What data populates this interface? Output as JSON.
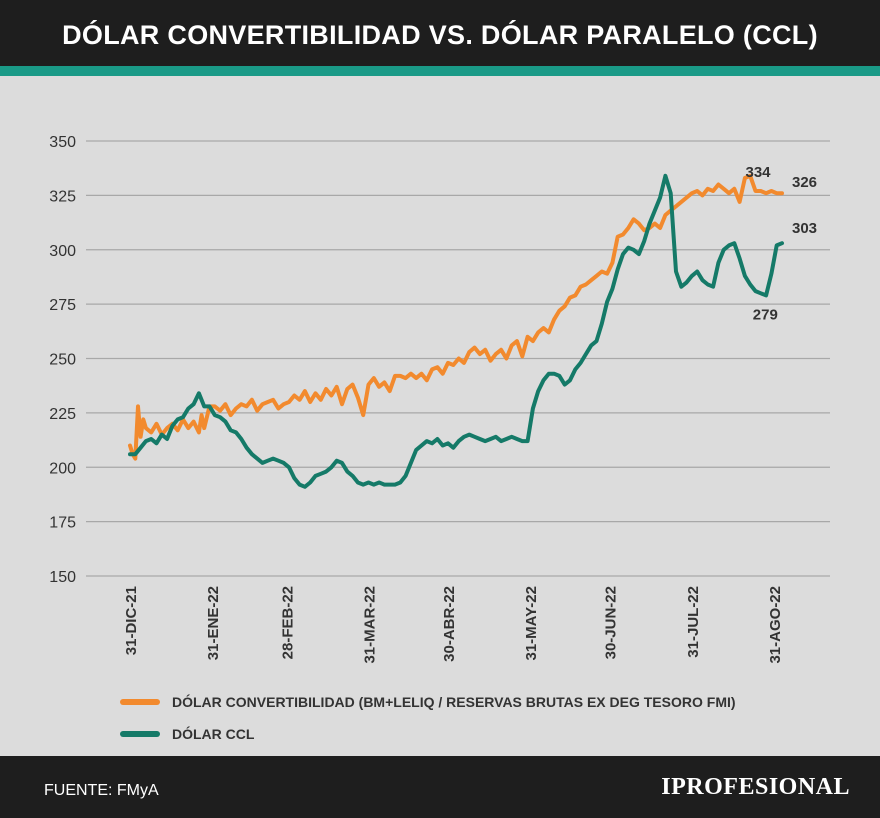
{
  "header": {
    "title": "DÓLAR CONVERTIBILIDAD VS. DÓLAR PARALELO (CCL)"
  },
  "colors": {
    "convertibilidad": "#f28a2e",
    "ccl": "#157a68",
    "accent": "#1a9a87",
    "header_bg": "#1e1e1e"
  },
  "chart_data": {
    "type": "line",
    "title": "DÓLAR CONVERTIBILIDAD VS. DÓLAR PARALELO (CCL)",
    "xlabel": "",
    "ylabel": "",
    "ylim": [
      150,
      350
    ],
    "y_ticks": [
      150,
      175,
      200,
      225,
      250,
      275,
      300,
      325,
      350
    ],
    "grid": true,
    "x_ticks": [
      {
        "label": "31-DIC-21",
        "day": 0
      },
      {
        "label": "31-ENE-22",
        "day": 31
      },
      {
        "label": "28-FEB-22",
        "day": 59
      },
      {
        "label": "31-MAR-22",
        "day": 90
      },
      {
        "label": "30-ABR-22",
        "day": 120
      },
      {
        "label": "31-MAY-22",
        "day": 151
      },
      {
        "label": "30-JUN-22",
        "day": 181
      },
      {
        "label": "31-JUL-22",
        "day": 212
      },
      {
        "label": "31-AGO-22",
        "day": 243
      }
    ],
    "series": [
      {
        "name": "DÓLAR CONVERTIBILIDAD (BM+LELIQ / RESERVAS BRUTAS EX DEG TESORO FMI)",
        "color": "#f28a2e",
        "x": [
          0,
          1,
          2,
          3,
          4,
          5,
          6,
          8,
          10,
          12,
          14,
          16,
          18,
          20,
          22,
          24,
          26,
          27,
          28,
          30,
          32,
          34,
          36,
          38,
          40,
          42,
          44,
          46,
          48,
          50,
          52,
          54,
          56,
          58,
          60,
          62,
          64,
          66,
          68,
          70,
          72,
          74,
          76,
          78,
          80,
          82,
          84,
          86,
          88,
          90,
          92,
          94,
          96,
          98,
          100,
          102,
          104,
          106,
          108,
          110,
          112,
          114,
          116,
          118,
          120,
          122,
          124,
          126,
          128,
          130,
          132,
          134,
          136,
          138,
          140,
          142,
          144,
          146,
          148,
          150,
          152,
          154,
          156,
          158,
          160,
          162,
          164,
          166,
          168,
          170,
          172,
          174,
          176,
          178,
          180,
          182,
          184,
          186,
          188,
          190,
          192,
          194,
          196,
          198,
          200,
          202,
          204,
          206,
          208,
          210,
          212,
          214,
          216,
          218,
          220,
          222,
          224,
          226,
          228,
          230,
          232,
          234,
          236,
          238,
          240,
          242,
          244,
          246
        ],
        "values": [
          210,
          206,
          204,
          228,
          214,
          222,
          218,
          216,
          220,
          215,
          218,
          220,
          217,
          222,
          218,
          221,
          216,
          224,
          218,
          228,
          228,
          226,
          229,
          224,
          227,
          229,
          228,
          231,
          226,
          229,
          230,
          231,
          227,
          229,
          230,
          233,
          231,
          235,
          230,
          234,
          231,
          236,
          233,
          237,
          229,
          236,
          238,
          232,
          224,
          238,
          241,
          237,
          239,
          235,
          242,
          242,
          241,
          243,
          241,
          243,
          240,
          245,
          246,
          243,
          248,
          247,
          250,
          248,
          253,
          255,
          252,
          254,
          249,
          252,
          254,
          250,
          256,
          258,
          251,
          260,
          258,
          262,
          264,
          262,
          268,
          272,
          274,
          278,
          279,
          283,
          284,
          286,
          288,
          290,
          289,
          294,
          306,
          307,
          310,
          314,
          312,
          309,
          310,
          312,
          310,
          316,
          318,
          320,
          322,
          324,
          326,
          327,
          325,
          328,
          327,
          330,
          328,
          326,
          328,
          322,
          333,
          334,
          327,
          327,
          326,
          327,
          326,
          326
        ]
      },
      {
        "name": "DÓLAR CCL",
        "color": "#157a68",
        "x": [
          0,
          2,
          4,
          6,
          8,
          10,
          12,
          14,
          16,
          18,
          20,
          22,
          24,
          26,
          28,
          30,
          32,
          34,
          36,
          38,
          40,
          42,
          44,
          46,
          48,
          50,
          52,
          54,
          56,
          58,
          60,
          62,
          64,
          66,
          68,
          70,
          72,
          74,
          76,
          78,
          80,
          82,
          84,
          86,
          88,
          90,
          92,
          94,
          96,
          98,
          100,
          102,
          104,
          106,
          108,
          110,
          112,
          114,
          116,
          118,
          120,
          122,
          124,
          126,
          128,
          130,
          132,
          134,
          136,
          138,
          140,
          142,
          144,
          146,
          148,
          150,
          152,
          154,
          156,
          158,
          160,
          162,
          164,
          166,
          168,
          170,
          172,
          174,
          176,
          178,
          180,
          182,
          184,
          186,
          188,
          190,
          192,
          194,
          196,
          198,
          200,
          202,
          204,
          206,
          208,
          210,
          212,
          214,
          216,
          218,
          220,
          222,
          224,
          226,
          228,
          230,
          232,
          234,
          236,
          238,
          240,
          242,
          244,
          246
        ],
        "values": [
          206,
          206,
          209,
          212,
          213,
          211,
          215,
          213,
          219,
          222,
          223,
          227,
          229,
          234,
          228,
          228,
          224,
          223,
          221,
          217,
          216,
          213,
          209,
          206,
          204,
          202,
          203,
          204,
          203,
          202,
          200,
          195,
          192,
          191,
          193,
          196,
          197,
          198,
          200,
          203,
          202,
          198,
          196,
          193,
          192,
          193,
          192,
          193,
          192,
          192,
          192,
          193,
          196,
          202,
          208,
          210,
          212,
          211,
          213,
          210,
          211,
          209,
          212,
          214,
          215,
          214,
          213,
          212,
          213,
          214,
          212,
          213,
          214,
          213,
          212,
          212,
          227,
          235,
          240,
          243,
          243,
          242,
          238,
          240,
          245,
          248,
          252,
          256,
          258,
          266,
          276,
          282,
          291,
          298,
          301,
          300,
          298,
          304,
          312,
          318,
          324,
          334,
          326,
          290,
          283,
          285,
          288,
          290,
          286,
          284,
          283,
          294,
          300,
          302,
          303,
          296,
          288,
          284,
          281,
          280,
          279,
          289,
          302,
          303
        ]
      }
    ],
    "annotations": [
      {
        "text": "334",
        "series": 0,
        "day": 236
      },
      {
        "text": "326",
        "series": 0,
        "day": 246
      },
      {
        "text": "303",
        "series": 1,
        "day": 246
      },
      {
        "text": "279",
        "series": 1,
        "day": 238
      }
    ]
  },
  "legend": {
    "items": [
      {
        "label": "DÓLAR CONVERTIBILIDAD (BM+LELIQ / RESERVAS BRUTAS EX DEG TESORO FMI)",
        "color": "#f28a2e"
      },
      {
        "label": "DÓLAR CCL",
        "color": "#157a68"
      }
    ]
  },
  "footer": {
    "source": "FUENTE: FMyA",
    "brand": "IPROFESIONAL"
  }
}
